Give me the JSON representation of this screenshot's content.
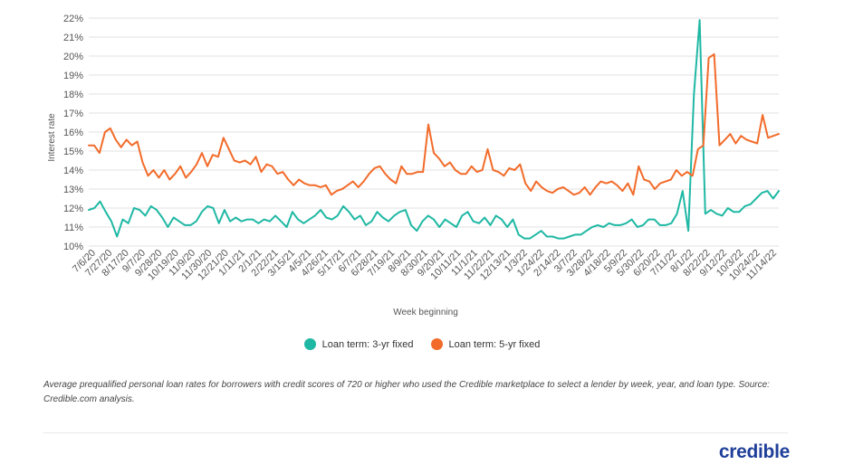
{
  "chart_data": {
    "type": "line",
    "title": "",
    "xlabel": "Week beginning",
    "ylabel": "Interest rate",
    "ylim": [
      10,
      22
    ],
    "ytick_values": [
      10,
      11,
      12,
      13,
      14,
      15,
      16,
      17,
      18,
      19,
      20,
      21,
      22
    ],
    "ytick_labels": [
      "10%",
      "11%",
      "12%",
      "13%",
      "14%",
      "15%",
      "16%",
      "17%",
      "18%",
      "19%",
      "20%",
      "21%",
      "22%"
    ],
    "grid": true,
    "legend_position": "bottom-center",
    "x_tick_labels": [
      "7/6/20",
      "7/27/20",
      "8/17/20",
      "9/7/20",
      "9/28/20",
      "10/19/20",
      "11/9/20",
      "11/30/20",
      "12/21/20",
      "1/11/21",
      "2/1/21",
      "2/22/21",
      "3/15/21",
      "4/5/21",
      "4/26/21",
      "5/17/21",
      "6/7/21",
      "6/28/21",
      "7/19/21",
      "8/9/21",
      "8/30/21",
      "9/20/21",
      "10/11/21",
      "11/1/21",
      "11/22/21",
      "12/13/21",
      "1/3/22",
      "1/24/22",
      "2/14/22",
      "3/7/22",
      "3/28/22",
      "4/18/22",
      "5/9/22",
      "5/30/22",
      "6/20/22",
      "7/11/22",
      "8/1/22",
      "8/22/22",
      "9/12/22",
      "10/3/22",
      "10/24/22",
      "11/14/22"
    ],
    "series": [
      {
        "name": "Loan term: 3-yr fixed",
        "color": "#1fb8a4",
        "values": [
          11.9,
          12.0,
          12.35,
          11.8,
          11.3,
          10.5,
          11.4,
          11.2,
          12.0,
          11.9,
          11.6,
          12.1,
          11.9,
          11.5,
          11.0,
          11.5,
          11.3,
          11.1,
          11.1,
          11.3,
          11.8,
          12.1,
          12.0,
          11.2,
          11.9,
          11.3,
          11.5,
          11.3,
          11.4,
          11.4,
          11.2,
          11.4,
          11.3,
          11.6,
          11.3,
          11.0,
          11.8,
          11.4,
          11.2,
          11.4,
          11.6,
          11.9,
          11.5,
          11.4,
          11.6,
          12.1,
          11.8,
          11.4,
          11.6,
          11.1,
          11.3,
          11.8,
          11.5,
          11.3,
          11.6,
          11.8,
          11.9,
          11.1,
          10.8,
          11.3,
          11.6,
          11.4,
          11.0,
          11.4,
          11.2,
          11.0,
          11.6,
          11.8,
          11.3,
          11.2,
          11.5,
          11.1,
          11.6,
          11.4,
          11.0,
          11.4,
          10.6,
          10.4,
          10.4,
          10.6,
          10.8,
          10.5,
          10.5,
          10.4,
          10.4,
          10.5,
          10.6,
          10.6,
          10.8,
          11.0,
          11.1,
          11.0,
          11.2,
          11.1,
          11.1,
          11.2,
          11.4,
          11.0,
          11.1,
          11.4,
          11.4,
          11.1,
          11.1,
          11.2,
          11.7,
          12.9,
          10.8,
          18.0,
          21.9,
          11.7,
          11.9,
          11.7,
          11.6,
          12.0,
          11.8,
          11.8,
          12.1,
          12.2,
          12.5,
          12.8,
          12.9,
          12.5,
          12.9
        ]
      },
      {
        "name": "Loan term: 5-yr fixed",
        "color": "#f26b2a",
        "values": [
          15.3,
          15.3,
          14.9,
          16.0,
          16.2,
          15.6,
          15.2,
          15.6,
          15.3,
          15.5,
          14.4,
          13.7,
          14.0,
          13.6,
          14.0,
          13.5,
          13.8,
          14.2,
          13.6,
          13.9,
          14.3,
          14.9,
          14.2,
          14.8,
          14.7,
          15.7,
          15.1,
          14.5,
          14.4,
          14.5,
          14.3,
          14.7,
          13.9,
          14.3,
          14.2,
          13.8,
          13.9,
          13.5,
          13.2,
          13.5,
          13.3,
          13.2,
          13.2,
          13.1,
          13.2,
          12.7,
          12.9,
          13.0,
          13.2,
          13.4,
          13.1,
          13.4,
          13.8,
          14.1,
          14.2,
          13.8,
          13.5,
          13.3,
          14.2,
          13.8,
          13.8,
          13.9,
          13.9,
          16.4,
          14.9,
          14.6,
          14.2,
          14.4,
          14.0,
          13.8,
          13.8,
          14.2,
          13.9,
          14.0,
          15.1,
          14.0,
          13.9,
          13.7,
          14.1,
          14.0,
          14.3,
          13.3,
          12.9,
          13.4,
          13.1,
          12.9,
          12.8,
          13.0,
          13.1,
          12.9,
          12.7,
          12.8,
          13.1,
          12.7,
          13.1,
          13.4,
          13.3,
          13.4,
          13.2,
          12.9,
          13.3,
          12.7,
          14.2,
          13.5,
          13.4,
          13.0,
          13.3,
          13.4,
          13.5,
          14.0,
          13.7,
          13.9,
          13.7,
          15.1,
          15.3,
          19.9,
          20.1,
          15.3,
          15.6,
          15.9,
          15.4,
          15.8,
          15.6,
          15.5,
          15.4,
          16.9,
          15.7,
          15.8,
          15.9
        ]
      }
    ]
  },
  "caption": "Average prequalified personal loan rates for borrowers with credit scores of 720 or higher who used the Credible marketplace to select a lender by week, year, and loan type. Source: Credible.com analysis.",
  "brand": "credible"
}
